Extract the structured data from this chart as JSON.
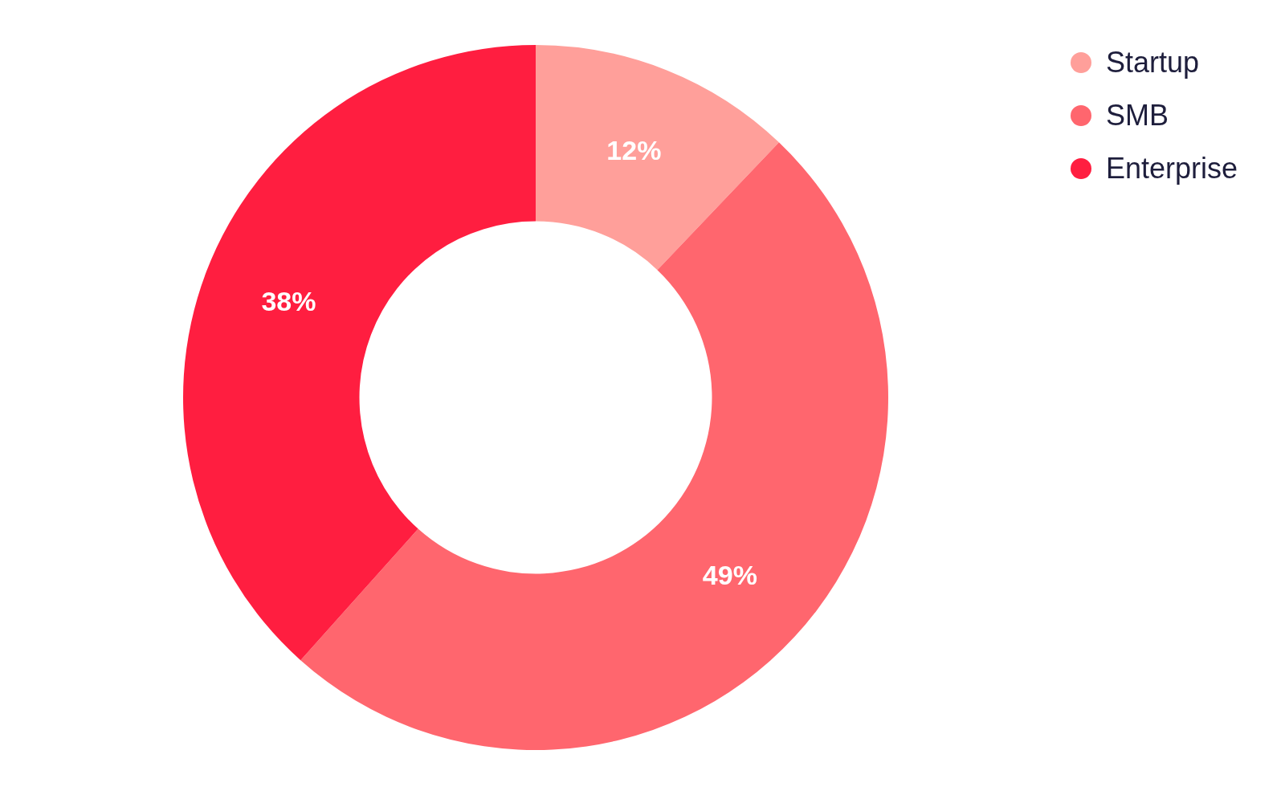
{
  "chart_data": {
    "type": "donut",
    "categories": [
      "Startup",
      "SMB",
      "Enterprise"
    ],
    "values": [
      12,
      49,
      38
    ],
    "value_labels": [
      "12%",
      "49%",
      "38%"
    ],
    "colors": [
      "#ff9f9a",
      "#ff666e",
      "#ff1e40"
    ],
    "legend": "top right"
  }
}
